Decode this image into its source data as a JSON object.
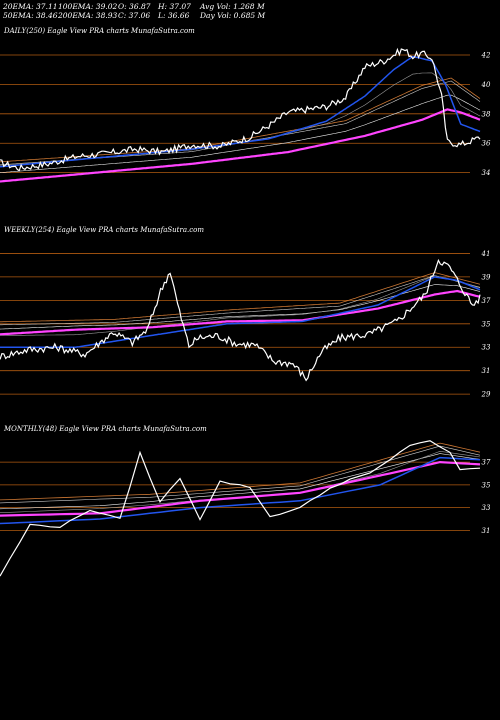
{
  "header": {
    "row1": [
      "20EMA: 37.11",
      "100EMA: 39.02",
      "O: 36.87",
      "H: 37.07",
      "Avg Vol: 1.268 M"
    ],
    "row2": [
      "50EMA: 38.46",
      "200EMA: 38.93",
      "C: 37.06",
      "L: 36.66",
      "Day Vol: 0.685 M"
    ]
  },
  "colors": {
    "price": "#ffffff",
    "ema_short": "#2255ee",
    "ema_long": "#ff44ff",
    "ema_mid": "#cc7733",
    "gridline": "#b05a10",
    "background": "#000000"
  },
  "chart_data": [
    {
      "type": "line",
      "title": "DAILY(250) Eagle   View  PRA charts MunafaSutra.com",
      "yticks": [
        42,
        40,
        38,
        36,
        34
      ],
      "ylim": [
        33.5,
        43.7
      ],
      "n": 250,
      "price_knots": [
        [
          0,
          34.7
        ],
        [
          10,
          34.3
        ],
        [
          25,
          34.6
        ],
        [
          40,
          35.1
        ],
        [
          55,
          35.3
        ],
        [
          70,
          35.6
        ],
        [
          85,
          35.4
        ],
        [
          100,
          35.9
        ],
        [
          115,
          35.8
        ],
        [
          130,
          36.4
        ],
        [
          140,
          37.2
        ],
        [
          150,
          38.1
        ],
        [
          160,
          38.3
        ],
        [
          170,
          38.5
        ],
        [
          180,
          39.1
        ],
        [
          190,
          41.2
        ],
        [
          200,
          41.6
        ],
        [
          210,
          42.4
        ],
        [
          215,
          41.9
        ],
        [
          220,
          42.1
        ],
        [
          225,
          41.8
        ],
        [
          230,
          39.2
        ],
        [
          233,
          36.1
        ],
        [
          240,
          35.9
        ],
        [
          250,
          36.4
        ]
      ],
      "ema_blue_knots": [
        [
          0,
          34.4
        ],
        [
          50,
          35.0
        ],
        [
          100,
          35.6
        ],
        [
          140,
          36.3
        ],
        [
          170,
          37.5
        ],
        [
          190,
          39.2
        ],
        [
          205,
          41.0
        ],
        [
          215,
          41.9
        ],
        [
          225,
          41.6
        ],
        [
          232,
          40.0
        ],
        [
          240,
          37.3
        ],
        [
          250,
          36.8
        ]
      ],
      "ema_magenta_knots": [
        [
          0,
          33.4
        ],
        [
          50,
          34.0
        ],
        [
          100,
          34.6
        ],
        [
          150,
          35.4
        ],
        [
          190,
          36.5
        ],
        [
          220,
          37.6
        ],
        [
          233,
          38.3
        ],
        [
          240,
          38.1
        ],
        [
          250,
          37.6
        ]
      ],
      "ema_extra": [
        [
          0,
          34.6
        ],
        [
          100,
          35.5
        ],
        [
          180,
          37.4
        ],
        [
          220,
          39.8
        ],
        [
          235,
          40.3
        ],
        [
          250,
          38.9
        ]
      ]
    },
    {
      "type": "line",
      "title": "WEEKLY(254) Eagle   View  PRA charts MunafaSutra.com",
      "yticks": [
        41,
        39,
        37,
        35,
        33,
        31,
        29
      ],
      "ylim": [
        28.5,
        43.0
      ],
      "n": 254,
      "price_knots": [
        [
          0,
          32.2
        ],
        [
          15,
          32.8
        ],
        [
          30,
          33.0
        ],
        [
          45,
          32.4
        ],
        [
          60,
          34.3
        ],
        [
          70,
          33.4
        ],
        [
          78,
          34.5
        ],
        [
          85,
          37.8
        ],
        [
          90,
          39.5
        ],
        [
          95,
          36.0
        ],
        [
          100,
          33.1
        ],
        [
          105,
          33.8
        ],
        [
          115,
          34.0
        ],
        [
          125,
          33.3
        ],
        [
          135,
          33.2
        ],
        [
          145,
          31.8
        ],
        [
          155,
          31.6
        ],
        [
          162,
          30.3
        ],
        [
          170,
          32.6
        ],
        [
          180,
          33.8
        ],
        [
          195,
          34.1
        ],
        [
          210,
          35.2
        ],
        [
          225,
          37.5
        ],
        [
          232,
          40.5
        ],
        [
          238,
          39.8
        ],
        [
          244,
          38.2
        ],
        [
          250,
          36.6
        ],
        [
          254,
          37.2
        ]
      ],
      "ema_blue_knots": [
        [
          0,
          33.0
        ],
        [
          40,
          33.0
        ],
        [
          80,
          34.0
        ],
        [
          120,
          35.0
        ],
        [
          160,
          35.2
        ],
        [
          200,
          36.6
        ],
        [
          230,
          39.0
        ],
        [
          242,
          38.7
        ],
        [
          254,
          37.9
        ]
      ],
      "ema_magenta_knots": [
        [
          0,
          34.1
        ],
        [
          40,
          34.5
        ],
        [
          80,
          34.7
        ],
        [
          120,
          35.2
        ],
        [
          160,
          35.3
        ],
        [
          200,
          36.3
        ],
        [
          230,
          37.5
        ],
        [
          242,
          37.8
        ],
        [
          254,
          37.3
        ]
      ],
      "ema_extra": [
        [
          0,
          35.0
        ],
        [
          60,
          35.2
        ],
        [
          120,
          36.0
        ],
        [
          180,
          36.6
        ],
        [
          230,
          39.2
        ],
        [
          254,
          38.2
        ]
      ]
    },
    {
      "type": "line",
      "title": "MONTHLY(48) Eagle   View  PRA charts MunafaSutra.com",
      "yticks": [
        37,
        35,
        33,
        31
      ],
      "ylim": [
        24.0,
        40.0
      ],
      "n": 48,
      "price_knots": [
        [
          0,
          27.0
        ],
        [
          2,
          30.0
        ],
        [
          3,
          31.5
        ],
        [
          6,
          31.3
        ],
        [
          9,
          32.8
        ],
        [
          12,
          32.0
        ],
        [
          14,
          37.8
        ],
        [
          16,
          33.5
        ],
        [
          18,
          35.6
        ],
        [
          20,
          32.0
        ],
        [
          22,
          35.3
        ],
        [
          25,
          34.8
        ],
        [
          27,
          32.2
        ],
        [
          30,
          33.0
        ],
        [
          33,
          34.7
        ],
        [
          35,
          35.5
        ],
        [
          37,
          36.0
        ],
        [
          39,
          37.2
        ],
        [
          41,
          38.5
        ],
        [
          43,
          38.9
        ],
        [
          45,
          37.8
        ],
        [
          46,
          36.3
        ],
        [
          48,
          36.5
        ]
      ],
      "ema_blue_knots": [
        [
          0,
          31.6
        ],
        [
          10,
          32.0
        ],
        [
          20,
          33.0
        ],
        [
          30,
          33.6
        ],
        [
          38,
          35.0
        ],
        [
          44,
          37.4
        ],
        [
          48,
          37.2
        ]
      ],
      "ema_magenta_knots": [
        [
          0,
          32.3
        ],
        [
          10,
          32.5
        ],
        [
          20,
          33.6
        ],
        [
          30,
          34.3
        ],
        [
          40,
          36.2
        ],
        [
          44,
          37.0
        ],
        [
          48,
          36.8
        ]
      ],
      "ema_extra": [
        [
          0,
          33.5
        ],
        [
          15,
          34.0
        ],
        [
          30,
          35.0
        ],
        [
          40,
          37.5
        ],
        [
          44,
          38.5
        ],
        [
          48,
          37.7
        ]
      ]
    }
  ]
}
